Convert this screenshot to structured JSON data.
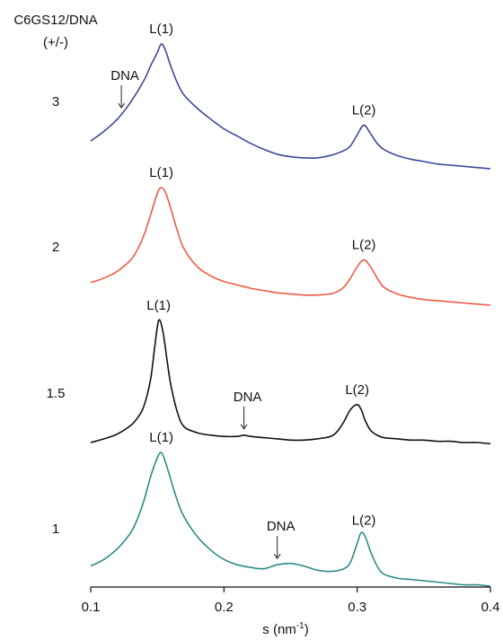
{
  "chart_data": {
    "type": "line",
    "legend_title_line1": "C6GS12/DNA",
    "legend_title_line2": "(+/-)",
    "xlabel": "s (nm",
    "xlabel_sup": "-1",
    "xlabel_close": ")",
    "xlim": [
      0.1,
      0.4
    ],
    "x_ticks": [
      "0.1",
      "0.2",
      "0.3",
      "0.4"
    ],
    "series": [
      {
        "name": "3",
        "color": "#3a4a9a",
        "x": [
          0.1,
          0.11,
          0.12,
          0.13,
          0.14,
          0.145,
          0.15,
          0.153,
          0.156,
          0.16,
          0.165,
          0.17,
          0.18,
          0.19,
          0.2,
          0.21,
          0.22,
          0.23,
          0.24,
          0.25,
          0.26,
          0.27,
          0.28,
          0.29,
          0.295,
          0.3,
          0.305,
          0.31,
          0.315,
          0.32,
          0.33,
          0.34,
          0.35,
          0.36,
          0.37,
          0.38,
          0.39,
          0.4
        ],
        "y": [
          0.2,
          0.28,
          0.38,
          0.52,
          0.7,
          0.82,
          0.93,
          1.0,
          0.95,
          0.82,
          0.68,
          0.58,
          0.47,
          0.38,
          0.3,
          0.24,
          0.18,
          0.13,
          0.09,
          0.07,
          0.06,
          0.06,
          0.08,
          0.12,
          0.16,
          0.25,
          0.33,
          0.26,
          0.18,
          0.13,
          0.08,
          0.05,
          0.03,
          0.01,
          0.0,
          -0.01,
          -0.02,
          -0.03
        ]
      },
      {
        "name": "2",
        "color": "#ee5a45",
        "x": [
          0.1,
          0.11,
          0.12,
          0.13,
          0.135,
          0.14,
          0.145,
          0.15,
          0.153,
          0.156,
          0.16,
          0.165,
          0.17,
          0.18,
          0.19,
          0.2,
          0.21,
          0.22,
          0.23,
          0.24,
          0.25,
          0.26,
          0.27,
          0.28,
          0.285,
          0.29,
          0.295,
          0.3,
          0.305,
          0.31,
          0.315,
          0.32,
          0.33,
          0.34,
          0.35,
          0.36,
          0.37,
          0.38,
          0.39,
          0.4
        ],
        "y": [
          0.16,
          0.2,
          0.26,
          0.36,
          0.45,
          0.58,
          0.76,
          0.95,
          1.0,
          0.96,
          0.82,
          0.62,
          0.46,
          0.3,
          0.22,
          0.17,
          0.14,
          0.11,
          0.09,
          0.07,
          0.06,
          0.05,
          0.05,
          0.06,
          0.08,
          0.12,
          0.2,
          0.3,
          0.36,
          0.3,
          0.2,
          0.12,
          0.06,
          0.03,
          0.01,
          0.0,
          -0.01,
          -0.02,
          -0.03,
          -0.04
        ]
      },
      {
        "name": "1.5",
        "color": "#111111",
        "x": [
          0.1,
          0.11,
          0.12,
          0.13,
          0.135,
          0.14,
          0.145,
          0.148,
          0.151,
          0.154,
          0.157,
          0.16,
          0.165,
          0.17,
          0.18,
          0.19,
          0.2,
          0.21,
          0.215,
          0.22,
          0.23,
          0.24,
          0.25,
          0.26,
          0.27,
          0.28,
          0.285,
          0.29,
          0.295,
          0.3,
          0.303,
          0.306,
          0.31,
          0.315,
          0.32,
          0.33,
          0.34,
          0.35,
          0.36,
          0.37,
          0.38,
          0.39,
          0.4
        ],
        "y": [
          0.0,
          0.03,
          0.07,
          0.14,
          0.2,
          0.3,
          0.52,
          0.78,
          1.0,
          0.92,
          0.7,
          0.48,
          0.25,
          0.13,
          0.08,
          0.06,
          0.05,
          0.05,
          0.06,
          0.05,
          0.04,
          0.03,
          0.02,
          0.02,
          0.03,
          0.05,
          0.09,
          0.17,
          0.27,
          0.31,
          0.27,
          0.18,
          0.1,
          0.06,
          0.04,
          0.03,
          0.02,
          0.02,
          0.01,
          0.01,
          0.0,
          0.0,
          -0.01
        ]
      },
      {
        "name": "1",
        "color": "#2a8c86",
        "x": [
          0.1,
          0.11,
          0.12,
          0.13,
          0.135,
          0.14,
          0.145,
          0.15,
          0.153,
          0.156,
          0.16,
          0.165,
          0.17,
          0.18,
          0.19,
          0.2,
          0.21,
          0.22,
          0.23,
          0.24,
          0.25,
          0.26,
          0.27,
          0.28,
          0.29,
          0.295,
          0.3,
          0.303,
          0.306,
          0.31,
          0.315,
          0.32,
          0.33,
          0.34,
          0.35,
          0.36,
          0.37,
          0.38,
          0.39,
          0.4
        ],
        "y": [
          0.15,
          0.2,
          0.28,
          0.4,
          0.5,
          0.64,
          0.82,
          0.96,
          1.0,
          0.93,
          0.8,
          0.64,
          0.52,
          0.37,
          0.27,
          0.2,
          0.16,
          0.14,
          0.13,
          0.16,
          0.17,
          0.15,
          0.12,
          0.11,
          0.13,
          0.18,
          0.32,
          0.4,
          0.37,
          0.26,
          0.15,
          0.09,
          0.06,
          0.05,
          0.04,
          0.03,
          0.02,
          0.01,
          0.01,
          0.0
        ]
      }
    ],
    "annotations": [
      {
        "series": "3",
        "text": "L(1)",
        "x": 0.153,
        "kind": "peak"
      },
      {
        "series": "3",
        "text": "L(2)",
        "x": 0.305,
        "kind": "peak"
      },
      {
        "series": "3",
        "text": "DNA",
        "x": 0.123,
        "kind": "arrow"
      },
      {
        "series": "2",
        "text": "L(1)",
        "x": 0.153,
        "kind": "peak"
      },
      {
        "series": "2",
        "text": "L(2)",
        "x": 0.305,
        "kind": "peak"
      },
      {
        "series": "1.5",
        "text": "L(1)",
        "x": 0.151,
        "kind": "peak"
      },
      {
        "series": "1.5",
        "text": "L(2)",
        "x": 0.3,
        "kind": "peak"
      },
      {
        "series": "1.5",
        "text": "DNA",
        "x": 0.215,
        "kind": "arrow"
      },
      {
        "series": "1",
        "text": "L(1)",
        "x": 0.153,
        "kind": "peak"
      },
      {
        "series": "1",
        "text": "L(2)",
        "x": 0.305,
        "kind": "peak"
      },
      {
        "series": "1",
        "text": "DNA",
        "x": 0.24,
        "kind": "arrow"
      }
    ]
  }
}
